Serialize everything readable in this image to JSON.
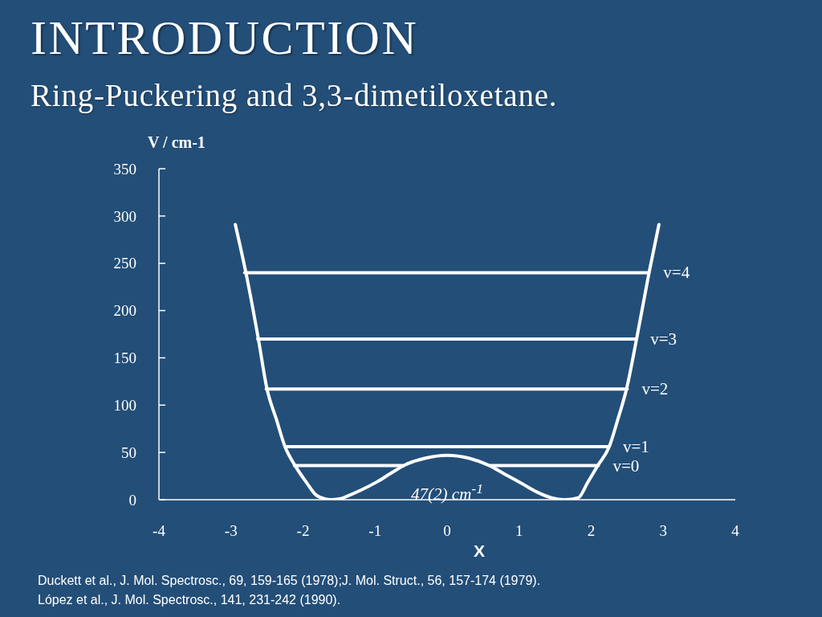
{
  "chart_data": {
    "type": "line",
    "title": "INTRODUCTION",
    "subtitle": "Ring-Puckering and 3,3-dimetiloxetane.",
    "xlabel": "X",
    "ylabel": "V / cm-1",
    "annotations": [
      {
        "text": "47(2) cm$^{-1}$",
        "x": 0,
        "y": 47
      },
      "Duckett et al., J. Mol. Spectrosc., 69, 159-165 (1978);J. Mol. Struct., 56, 157-174 (1979).",
      "López et al., J. Mol. Spectrosc., 141, 231-242 (1990)."
    ],
    "xlim": [
      -4,
      4
    ],
    "xticks": [
      -4,
      -3,
      -2,
      -1,
      0,
      1,
      2,
      3,
      4
    ],
    "ylim": [
      0,
      350
    ],
    "yticks": [
      0,
      50,
      100,
      150,
      200,
      250,
      300,
      350
    ],
    "marker": "none",
    "line_style": "solid",
    "series": [
      {
        "color": "#ffffff",
        "x": [
          -2.94,
          -2.79,
          -2.62,
          -2.5,
          -2.37,
          -2.25,
          -2.11,
          -1.95,
          -1.82,
          -1.7,
          -1.6,
          -1.48,
          -1.38,
          -1.2,
          -0.97,
          -0.78,
          -0.58,
          -0.3,
          0,
          0.3,
          0.59,
          0.8,
          1.04,
          1.25,
          1.45,
          1.63,
          1.82,
          1.95,
          2.09,
          2.25,
          2.37,
          2.49,
          2.63,
          2.8,
          2.94
        ],
        "values": [
          291,
          239,
          170,
          117,
          85,
          56,
          36,
          18,
          5,
          1,
          0,
          1,
          4,
          10,
          19,
          28,
          37,
          44,
          47,
          44,
          36,
          27,
          17,
          8,
          2,
          0,
          2,
          18,
          36,
          56,
          85,
          117,
          170,
          239,
          291
        ]
      },
      {
        "name": "v=4",
        "color": "#ffffff",
        "x": [
          -2.81,
          2.8
        ],
        "values": [
          240,
          240
        ]
      },
      {
        "name": "v=3",
        "color": "#ffffff",
        "x": [
          -2.63,
          2.62
        ],
        "values": [
          170,
          170
        ]
      },
      {
        "name": "v=2",
        "color": "#ffffff",
        "x": [
          -2.51,
          2.5
        ],
        "values": [
          117,
          117
        ]
      },
      {
        "name": "v=1",
        "color": "#ffffff",
        "x": [
          -2.25,
          2.24
        ],
        "values": [
          56,
          56
        ]
      },
      {
        "name": "v=0",
        "color": "#ffffff",
        "x": [
          -2.12,
          -0.6,
          0,
          0.6,
          2.1
        ],
        "values": [
          36,
          36,
          null,
          36,
          36
        ]
      }
    ]
  }
}
